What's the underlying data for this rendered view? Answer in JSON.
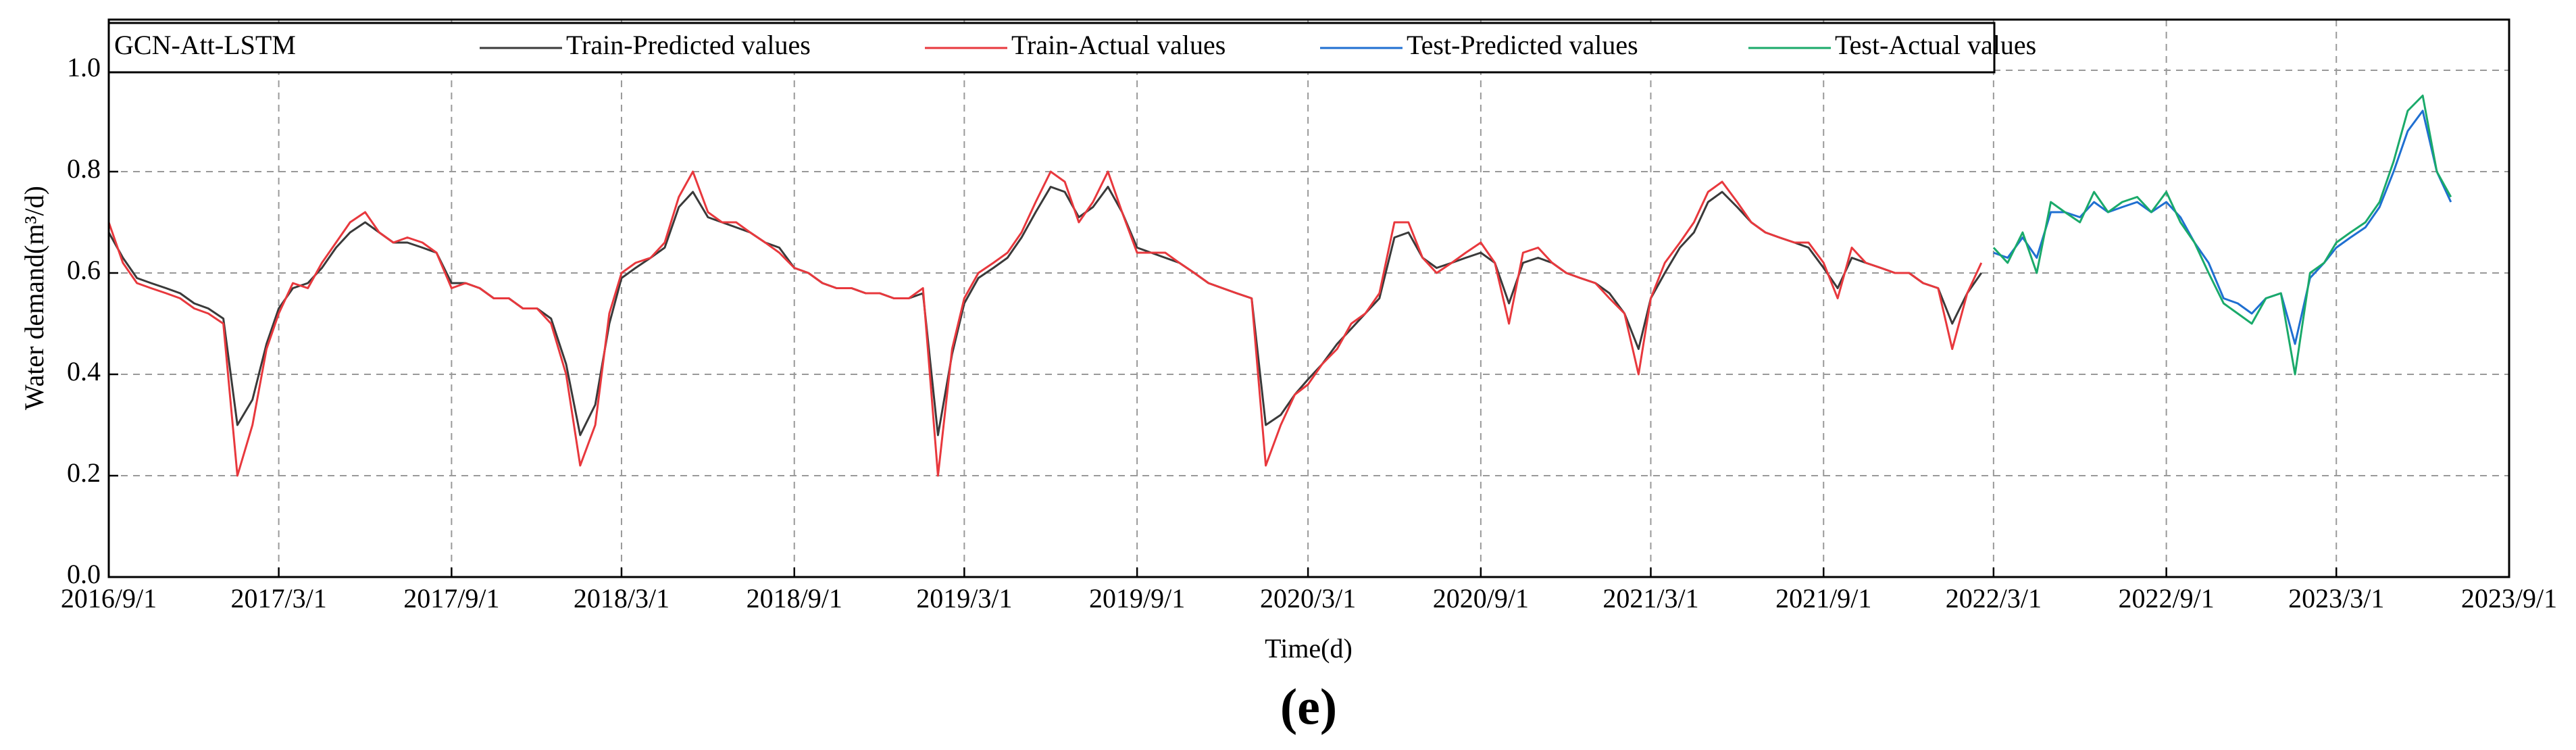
{
  "chart_data": {
    "type": "line",
    "legend_title": "GCN-Att-LSTM",
    "xlabel": "Time(d)",
    "ylabel": "Water demand(m³/d)",
    "caption": "(e)",
    "legend": "top-left",
    "grid": true,
    "xlim": [
      "2016/9/1",
      "2023/9/1"
    ],
    "xticks": [
      "2016/9/1",
      "2017/3/1",
      "2017/9/1",
      "2018/3/1",
      "2018/9/1",
      "2019/3/1",
      "2019/9/1",
      "2020/3/1",
      "2020/9/1",
      "2021/3/1",
      "2021/9/1",
      "2022/3/1",
      "2022/9/1",
      "2023/3/1",
      "2023/9/1"
    ],
    "ylim": [
      0,
      1.1
    ],
    "yticks": [
      {
        "value": 0,
        "label": "0.0"
      },
      0.2,
      0.4,
      0.6,
      0.8,
      {
        "value": 1,
        "label": "1.0"
      }
    ],
    "x": [
      "2016/9/1",
      "2016/9/16",
      "2016/10/1",
      "2016/10/16",
      "2016/11/1",
      "2016/11/16",
      "2016/12/1",
      "2016/12/16",
      "2017/1/1",
      "2017/1/16",
      "2017/2/1",
      "2017/2/16",
      "2017/3/1",
      "2017/3/16",
      "2017/4/1",
      "2017/4/16",
      "2017/5/1",
      "2017/5/16",
      "2017/6/1",
      "2017/6/16",
      "2017/7/1",
      "2017/7/16",
      "2017/8/1",
      "2017/8/16",
      "2017/9/1",
      "2017/9/16",
      "2017/10/1",
      "2017/10/16",
      "2017/11/1",
      "2017/11/16",
      "2017/12/1",
      "2017/12/16",
      "2018/1/1",
      "2018/1/16",
      "2018/2/1",
      "2018/2/16",
      "2018/3/1",
      "2018/3/16",
      "2018/4/1",
      "2018/4/16",
      "2018/5/1",
      "2018/5/16",
      "2018/6/1",
      "2018/6/16",
      "2018/7/1",
      "2018/7/16",
      "2018/8/1",
      "2018/8/16",
      "2018/9/1",
      "2018/9/16",
      "2018/10/1",
      "2018/10/16",
      "2018/11/1",
      "2018/11/16",
      "2018/12/1",
      "2018/12/16",
      "2019/1/1",
      "2019/1/16",
      "2019/2/1",
      "2019/2/16",
      "2019/3/1",
      "2019/3/16",
      "2019/4/1",
      "2019/4/16",
      "2019/5/1",
      "2019/5/16",
      "2019/6/1",
      "2019/6/16",
      "2019/7/1",
      "2019/7/16",
      "2019/8/1",
      "2019/8/16",
      "2019/9/1",
      "2019/9/16",
      "2019/10/1",
      "2019/10/16",
      "2019/11/1",
      "2019/11/16",
      "2019/12/1",
      "2019/12/16",
      "2020/1/1",
      "2020/1/16",
      "2020/2/1",
      "2020/2/16",
      "2020/3/1",
      "2020/3/16",
      "2020/4/1",
      "2020/4/16",
      "2020/5/1",
      "2020/5/16",
      "2020/6/1",
      "2020/6/16",
      "2020/7/1",
      "2020/7/16",
      "2020/8/1",
      "2020/8/16",
      "2020/9/1",
      "2020/9/16",
      "2020/10/1",
      "2020/10/16",
      "2020/11/1",
      "2020/11/16",
      "2020/12/1",
      "2020/12/16",
      "2021/1/1",
      "2021/1/16",
      "2021/2/1",
      "2021/2/16",
      "2021/3/1",
      "2021/3/16",
      "2021/4/1",
      "2021/4/16",
      "2021/5/1",
      "2021/5/16",
      "2021/6/1",
      "2021/6/16",
      "2021/7/1",
      "2021/7/16",
      "2021/8/1",
      "2021/8/16",
      "2021/9/1",
      "2021/9/16",
      "2021/10/1",
      "2021/10/16",
      "2021/11/1",
      "2021/11/16",
      "2021/12/1",
      "2021/12/16",
      "2022/1/1",
      "2022/1/16",
      "2022/2/1",
      "2022/2/16",
      "2022/3/1",
      "2022/3/16",
      "2022/4/1",
      "2022/4/16",
      "2022/5/1",
      "2022/5/16",
      "2022/6/1",
      "2022/6/16",
      "2022/7/1",
      "2022/7/16",
      "2022/8/1",
      "2022/8/16",
      "2022/9/1",
      "2022/9/16",
      "2022/10/1",
      "2022/10/16",
      "2022/11/1",
      "2022/11/16",
      "2022/12/1",
      "2022/12/16",
      "2023/1/1",
      "2023/1/16",
      "2023/2/1",
      "2023/2/16",
      "2023/3/1",
      "2023/3/16",
      "2023/4/1",
      "2023/4/16",
      "2023/5/1",
      "2023/5/16",
      "2023/6/1",
      "2023/6/16",
      "2023/7/1"
    ],
    "series": [
      {
        "name": "Train-Predicted values",
        "color": "#3a3a3a",
        "values": [
          0.68,
          0.63,
          0.59,
          0.58,
          0.57,
          0.56,
          0.54,
          0.53,
          0.51,
          0.3,
          0.35,
          0.46,
          0.53,
          0.57,
          0.58,
          0.61,
          0.65,
          0.68,
          0.7,
          0.68,
          0.66,
          0.66,
          0.65,
          0.64,
          0.58,
          0.58,
          0.57,
          0.55,
          0.55,
          0.53,
          0.53,
          0.51,
          0.42,
          0.28,
          0.34,
          0.5,
          0.59,
          0.61,
          0.63,
          0.65,
          0.73,
          0.76,
          0.71,
          0.7,
          0.69,
          0.68,
          0.66,
          0.65,
          0.61,
          0.6,
          0.58,
          0.57,
          0.57,
          0.56,
          0.56,
          0.55,
          0.55,
          0.56,
          0.28,
          0.44,
          0.54,
          0.59,
          0.61,
          0.63,
          0.67,
          0.72,
          0.77,
          0.76,
          0.71,
          0.73,
          0.77,
          0.72,
          0.65,
          0.64,
          0.63,
          0.62,
          0.6,
          0.58,
          0.57,
          0.56,
          0.55,
          0.3,
          0.32,
          0.36,
          0.39,
          0.42,
          0.46,
          0.49,
          0.52,
          0.55,
          0.67,
          0.68,
          0.63,
          0.61,
          0.62,
          0.63,
          0.64,
          0.62,
          0.54,
          0.62,
          0.63,
          0.62,
          0.6,
          0.59,
          0.58,
          0.56,
          0.52,
          0.45,
          0.55,
          0.6,
          0.65,
          0.68,
          0.74,
          0.76,
          0.73,
          0.7,
          0.68,
          0.67,
          0.66,
          0.65,
          0.61,
          0.57,
          0.63,
          0.62,
          0.61,
          0.6,
          0.6,
          0.58,
          0.57,
          0.5,
          0.56,
          0.6,
          null,
          null,
          null,
          null,
          null,
          null,
          null,
          null,
          null,
          null,
          null,
          null,
          null,
          null,
          null,
          null,
          null,
          null,
          null,
          null,
          null,
          null,
          null,
          null,
          null,
          null,
          null,
          null,
          null,
          null,
          null,
          null,
          null
        ]
      },
      {
        "name": "Train-Actual values",
        "color": "#e8383d",
        "values": [
          0.7,
          0.62,
          0.58,
          0.57,
          0.56,
          0.55,
          0.53,
          0.52,
          0.5,
          0.2,
          0.3,
          0.45,
          0.52,
          0.58,
          0.57,
          0.62,
          0.66,
          0.7,
          0.72,
          0.68,
          0.66,
          0.67,
          0.66,
          0.64,
          0.57,
          0.58,
          0.57,
          0.55,
          0.55,
          0.53,
          0.53,
          0.5,
          0.4,
          0.22,
          0.3,
          0.52,
          0.6,
          0.62,
          0.63,
          0.66,
          0.75,
          0.8,
          0.72,
          0.7,
          0.7,
          0.68,
          0.66,
          0.64,
          0.61,
          0.6,
          0.58,
          0.57,
          0.57,
          0.56,
          0.56,
          0.55,
          0.55,
          0.57,
          0.2,
          0.45,
          0.55,
          0.6,
          0.62,
          0.64,
          0.68,
          0.74,
          0.8,
          0.78,
          0.7,
          0.74,
          0.8,
          0.72,
          0.64,
          0.64,
          0.64,
          0.62,
          0.6,
          0.58,
          0.57,
          0.56,
          0.55,
          0.22,
          0.3,
          0.36,
          0.38,
          0.42,
          0.45,
          0.5,
          0.52,
          0.56,
          0.7,
          0.7,
          0.63,
          0.6,
          0.62,
          0.64,
          0.66,
          0.62,
          0.5,
          0.64,
          0.65,
          0.62,
          0.6,
          0.59,
          0.58,
          0.55,
          0.52,
          0.4,
          0.55,
          0.62,
          0.66,
          0.7,
          0.76,
          0.78,
          0.74,
          0.7,
          0.68,
          0.67,
          0.66,
          0.66,
          0.62,
          0.55,
          0.65,
          0.62,
          0.61,
          0.6,
          0.6,
          0.58,
          0.57,
          0.45,
          0.56,
          0.62,
          null,
          null,
          null,
          null,
          null,
          null,
          null,
          null,
          null,
          null,
          null,
          null,
          null,
          null,
          null,
          null,
          null,
          null,
          null,
          null,
          null,
          null,
          null,
          null,
          null,
          null,
          null,
          null,
          null,
          null,
          null,
          null,
          null
        ]
      },
      {
        "name": "Test-Predicted values",
        "color": "#1f6fd1",
        "values": [
          null,
          null,
          null,
          null,
          null,
          null,
          null,
          null,
          null,
          null,
          null,
          null,
          null,
          null,
          null,
          null,
          null,
          null,
          null,
          null,
          null,
          null,
          null,
          null,
          null,
          null,
          null,
          null,
          null,
          null,
          null,
          null,
          null,
          null,
          null,
          null,
          null,
          null,
          null,
          null,
          null,
          null,
          null,
          null,
          null,
          null,
          null,
          null,
          null,
          null,
          null,
          null,
          null,
          null,
          null,
          null,
          null,
          null,
          null,
          null,
          null,
          null,
          null,
          null,
          null,
          null,
          null,
          null,
          null,
          null,
          null,
          null,
          null,
          null,
          null,
          null,
          null,
          null,
          null,
          null,
          null,
          null,
          null,
          null,
          null,
          null,
          null,
          null,
          null,
          null,
          null,
          null,
          null,
          null,
          null,
          null,
          null,
          null,
          null,
          null,
          null,
          null,
          null,
          null,
          null,
          null,
          null,
          null,
          null,
          null,
          null,
          null,
          null,
          null,
          null,
          null,
          null,
          null,
          null,
          null,
          null,
          null,
          null,
          null,
          null,
          null,
          null,
          null,
          null,
          null,
          null,
          null,
          0.64,
          0.63,
          0.67,
          0.63,
          0.72,
          0.72,
          0.71,
          0.74,
          0.72,
          0.73,
          0.74,
          0.72,
          0.74,
          0.71,
          0.66,
          0.62,
          0.55,
          0.54,
          0.52,
          0.55,
          0.56,
          0.46,
          0.59,
          0.62,
          0.65,
          0.67,
          0.69,
          0.73,
          0.8,
          0.88,
          0.92,
          0.8,
          0.74
        ]
      },
      {
        "name": "Test-Actual values",
        "color": "#1aaa6a",
        "values": [
          null,
          null,
          null,
          null,
          null,
          null,
          null,
          null,
          null,
          null,
          null,
          null,
          null,
          null,
          null,
          null,
          null,
          null,
          null,
          null,
          null,
          null,
          null,
          null,
          null,
          null,
          null,
          null,
          null,
          null,
          null,
          null,
          null,
          null,
          null,
          null,
          null,
          null,
          null,
          null,
          null,
          null,
          null,
          null,
          null,
          null,
          null,
          null,
          null,
          null,
          null,
          null,
          null,
          null,
          null,
          null,
          null,
          null,
          null,
          null,
          null,
          null,
          null,
          null,
          null,
          null,
          null,
          null,
          null,
          null,
          null,
          null,
          null,
          null,
          null,
          null,
          null,
          null,
          null,
          null,
          null,
          null,
          null,
          null,
          null,
          null,
          null,
          null,
          null,
          null,
          null,
          null,
          null,
          null,
          null,
          null,
          null,
          null,
          null,
          null,
          null,
          null,
          null,
          null,
          null,
          null,
          null,
          null,
          null,
          null,
          null,
          null,
          null,
          null,
          null,
          null,
          null,
          null,
          null,
          null,
          null,
          null,
          null,
          null,
          null,
          null,
          null,
          null,
          null,
          null,
          null,
          null,
          0.65,
          0.62,
          0.68,
          0.6,
          0.74,
          0.72,
          0.7,
          0.76,
          0.72,
          0.74,
          0.75,
          0.72,
          0.76,
          0.7,
          0.66,
          0.6,
          0.54,
          0.52,
          0.5,
          0.55,
          0.56,
          0.4,
          0.6,
          0.62,
          0.66,
          0.68,
          0.7,
          0.74,
          0.82,
          0.92,
          0.95,
          0.8,
          0.75
        ]
      }
    ]
  }
}
